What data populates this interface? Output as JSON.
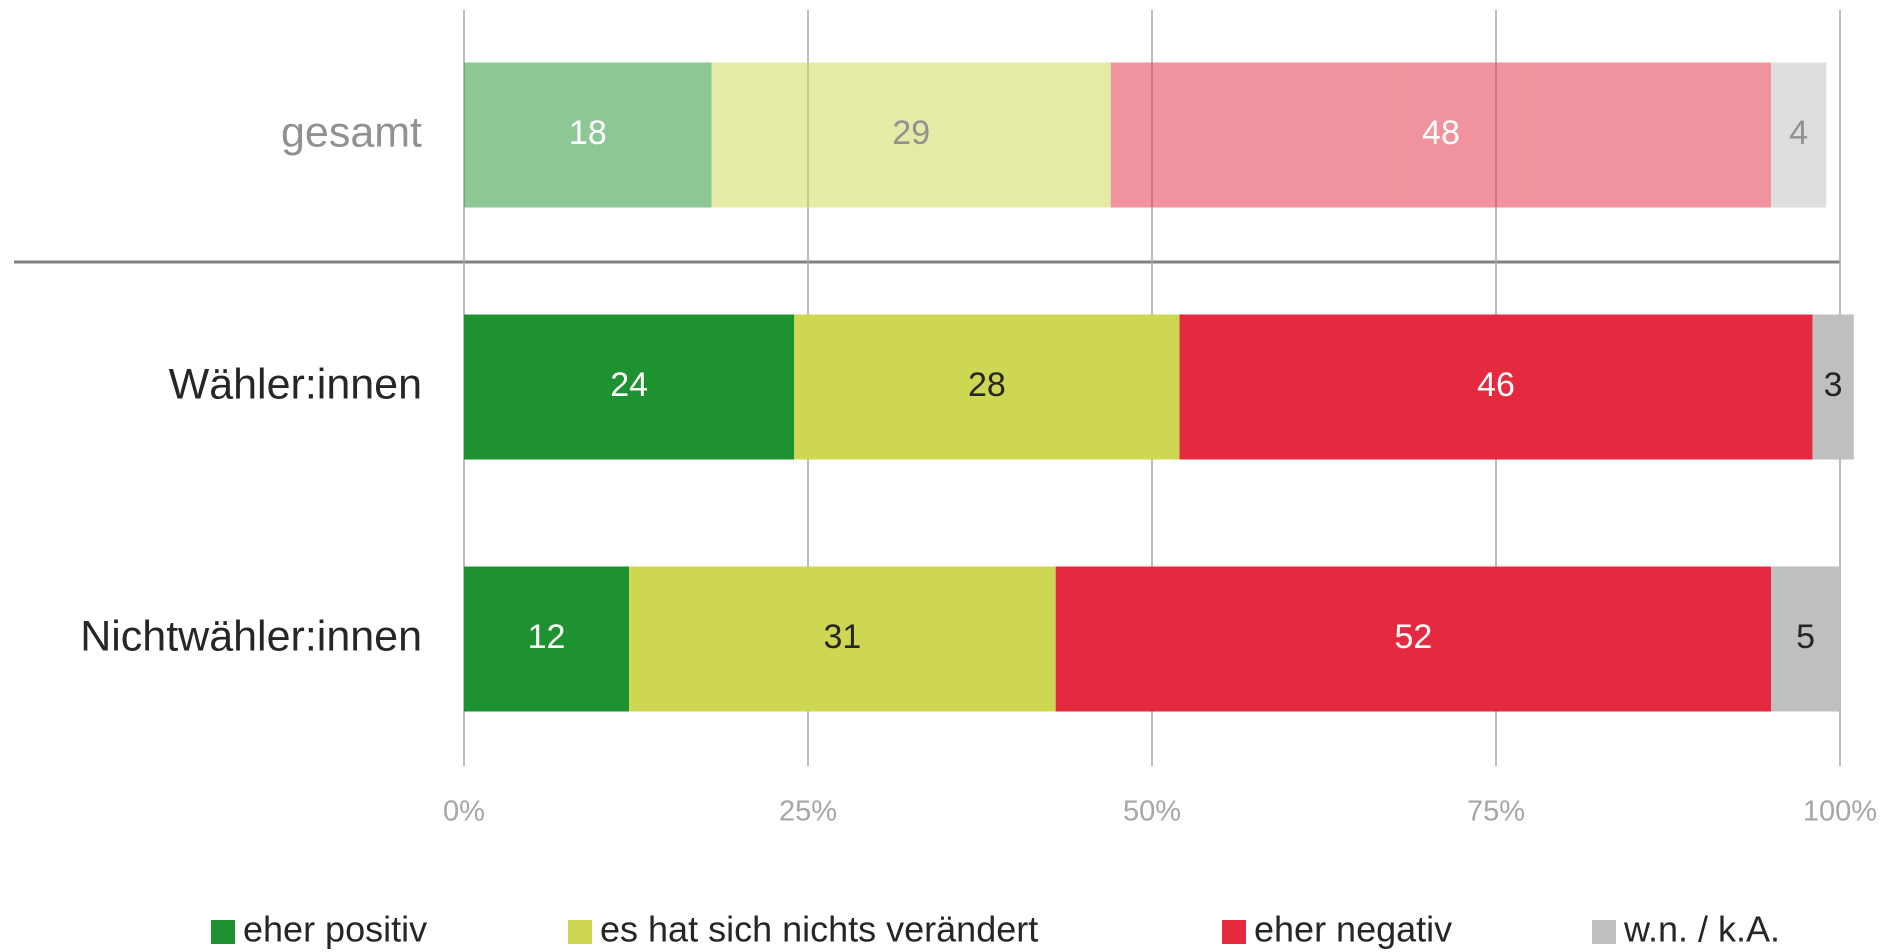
{
  "chart_data": {
    "type": "stacked_barh",
    "categories": [
      "gesamt",
      "Wähler:innen",
      "Nichtwähler:innen"
    ],
    "series": [
      {
        "name": "eher positiv",
        "color": "#1e9130",
        "values": [
          18,
          24,
          12
        ]
      },
      {
        "name": "es hat sich nichts verändert",
        "color": "#cdd752",
        "values": [
          29,
          28,
          31
        ]
      },
      {
        "name": "eher negativ",
        "color": "#e52a40",
        "values": [
          48,
          46,
          52
        ]
      },
      {
        "name": "w.n. / k.A.",
        "color": "#bfbfbf",
        "values": [
          4,
          3,
          5
        ]
      }
    ],
    "xlim": [
      0,
      100
    ],
    "xticks": [
      {
        "value": 0,
        "label": "0%"
      },
      {
        "value": 25,
        "label": "25%"
      },
      {
        "value": 50,
        "label": "50%"
      },
      {
        "value": 75,
        "label": "75%"
      },
      {
        "value": 100,
        "label": "100%"
      }
    ],
    "grid": true,
    "legend": "bottom"
  }
}
